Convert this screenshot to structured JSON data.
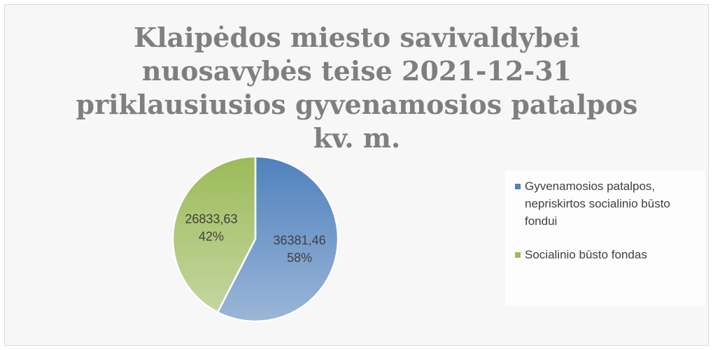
{
  "chart_data": {
    "type": "pie",
    "title": "Klaipėdos miesto savivaldybei nuosavybės teise 2021-12-31 priklausiusios gyvenamosios patalpos kv. m.",
    "categories": [
      "Gyvenamosios patalpos, nepriskirtos socialinio būsto fondui",
      "Socialinio būsto fondas"
    ],
    "values": [
      36381.46,
      26833.63
    ],
    "value_labels": [
      "36381,46",
      "26833,63"
    ],
    "percent_labels": [
      "58%",
      "42%"
    ],
    "colors": [
      "#4f81bd",
      "#9bbb59"
    ],
    "legend": "right"
  }
}
